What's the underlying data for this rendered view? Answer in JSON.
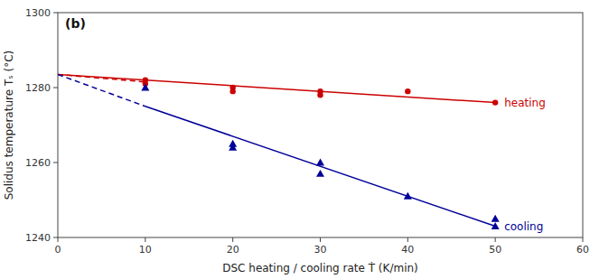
{
  "chart_data": {
    "type": "scatter",
    "title": "(b)",
    "xlabel": "DSC heating / cooling rate Ṫ (K/min)",
    "ylabel": "Solidus temperature Tₛ (°C)",
    "xlim": [
      0,
      60
    ],
    "ylim": [
      1240,
      1300
    ],
    "xticks": [
      0,
      10,
      20,
      30,
      40,
      50,
      60
    ],
    "yticks": [
      1240,
      1260,
      1280,
      1300
    ],
    "grid": false,
    "series": [
      {
        "type": "line",
        "line_style": "dashed",
        "color": "#cc0000",
        "x": [
          0,
          10
        ],
        "values": [
          1283.5,
          1281.5
        ]
      },
      {
        "type": "line",
        "line_style": "solid",
        "color": "#cc0000",
        "x": [
          0,
          50
        ],
        "values": [
          1283.5,
          1276.0
        ]
      },
      {
        "type": "line",
        "line_style": "dashed",
        "color": "#000099",
        "x": [
          0,
          10
        ],
        "values": [
          1283.5,
          1275.0
        ]
      },
      {
        "type": "line",
        "line_style": "solid",
        "color": "#000099",
        "x": [
          10,
          50
        ],
        "values": [
          1275.0,
          1243.0
        ]
      },
      {
        "name": "heating",
        "type": "scatter",
        "marker": "circle",
        "color": "#cc0000",
        "x": [
          10,
          10,
          20,
          20,
          30,
          30,
          40,
          50
        ],
        "values": [
          1282,
          1281,
          1280,
          1279,
          1279,
          1278,
          1279,
          1276
        ]
      },
      {
        "name": "cooling",
        "type": "scatter",
        "marker": "triangle",
        "color": "#000099",
        "x": [
          10,
          20,
          20,
          30,
          30,
          40,
          50,
          50
        ],
        "values": [
          1280,
          1265,
          1264,
          1260,
          1257,
          1251,
          1245,
          1243
        ]
      }
    ]
  }
}
